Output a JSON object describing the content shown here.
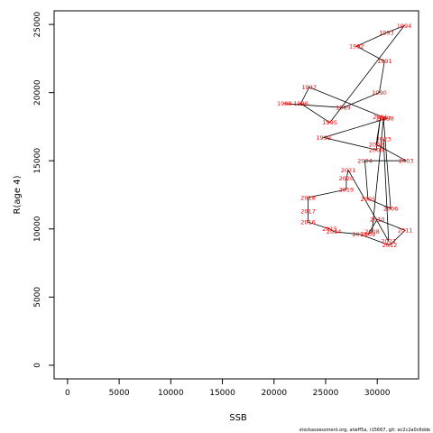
{
  "chart_data": {
    "type": "line",
    "title": "",
    "xlabel": "SSB",
    "ylabel": "R(age 4)",
    "xlim": [
      -1300,
      34000
    ],
    "ylim": [
      -1000,
      26000
    ],
    "x_ticks": [
      0,
      5000,
      10000,
      15000,
      20000,
      25000,
      30000
    ],
    "y_ticks": [
      0,
      5000,
      10000,
      15000,
      20000,
      25000
    ],
    "grid": false,
    "line_color": "#000000",
    "label_color": "#ff0000",
    "points": [
      {
        "year": "1988",
        "x": 21000,
        "y": 19200
      },
      {
        "year": "1989",
        "x": 26700,
        "y": 18900
      },
      {
        "year": "1990",
        "x": 30200,
        "y": 20000
      },
      {
        "year": "1991",
        "x": 30700,
        "y": 22300
      },
      {
        "year": "1992",
        "x": 28000,
        "y": 23400
      },
      {
        "year": "1993",
        "x": 30900,
        "y": 24400
      },
      {
        "year": "1994",
        "x": 32600,
        "y": 24900
      },
      {
        "year": "1995",
        "x": 25400,
        "y": 17800
      },
      {
        "year": "1996",
        "x": 22600,
        "y": 19200
      },
      {
        "year": "1997",
        "x": 23400,
        "y": 20400
      },
      {
        "year": "1998",
        "x": 30900,
        "y": 18100
      },
      {
        "year": "1999",
        "x": 24800,
        "y": 16700
      },
      {
        "year": "2000",
        "x": 29900,
        "y": 15800
      },
      {
        "year": "2001",
        "x": 30300,
        "y": 18200
      },
      {
        "year": "2002",
        "x": 29900,
        "y": 16200
      },
      {
        "year": "2003",
        "x": 32800,
        "y": 15000
      },
      {
        "year": "2004",
        "x": 28800,
        "y": 15000
      },
      {
        "year": "2005",
        "x": 29100,
        "y": 12200
      },
      {
        "year": "2006",
        "x": 31300,
        "y": 11500
      },
      {
        "year": "2007",
        "x": 30600,
        "y": 18100
      },
      {
        "year": "2008",
        "x": 29500,
        "y": 9800
      },
      {
        "year": "2009",
        "x": 29100,
        "y": 9600
      },
      {
        "year": "2010",
        "x": 30000,
        "y": 10700
      },
      {
        "year": "2011",
        "x": 32700,
        "y": 9900
      },
      {
        "year": "2012",
        "x": 31200,
        "y": 8800
      },
      {
        "year": "2013",
        "x": 28300,
        "y": 9600
      },
      {
        "year": "2014",
        "x": 25800,
        "y": 9800
      },
      {
        "year": "2015",
        "x": 25400,
        "y": 10000
      },
      {
        "year": "2016",
        "x": 23300,
        "y": 10500
      },
      {
        "year": "2017",
        "x": 23300,
        "y": 11300
      },
      {
        "year": "2018",
        "x": 23300,
        "y": 12300
      },
      {
        "year": "2019",
        "x": 27000,
        "y": 12900
      },
      {
        "year": "2020",
        "x": 27000,
        "y": 13700
      },
      {
        "year": "2021",
        "x": 27200,
        "y": 14300
      },
      {
        "year": "2022",
        "x": 31100,
        "y": 9100
      },
      {
        "year": "2023",
        "x": 30600,
        "y": 16600
      }
    ],
    "footer": "stockassessment.org, atwff5a, r15667, git: ec2c2a0c6dde"
  }
}
